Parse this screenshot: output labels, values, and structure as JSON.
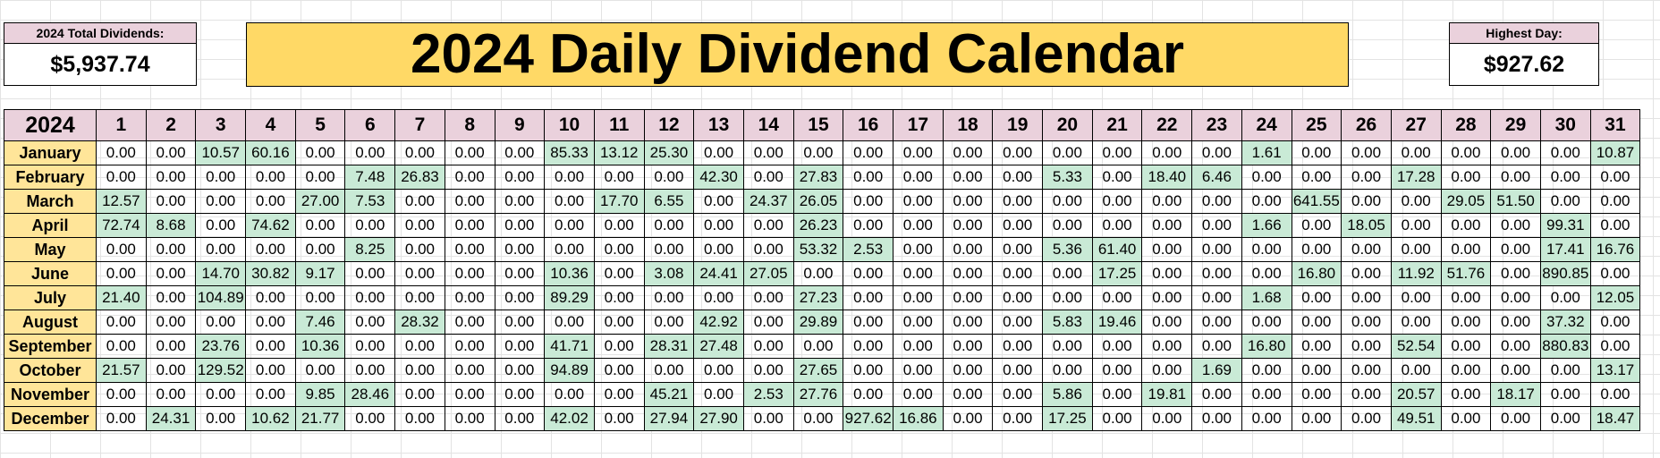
{
  "summary": {
    "total_label": "2024 Total Dividends:",
    "total_value": "$5,937.74",
    "title": "2024 Daily Dividend Calendar",
    "highest_label": "Highest Day:",
    "highest_value": "$927.62"
  },
  "calendar": {
    "year_label": "2024",
    "days": [
      "1",
      "2",
      "3",
      "4",
      "5",
      "6",
      "7",
      "8",
      "9",
      "10",
      "11",
      "12",
      "13",
      "14",
      "15",
      "16",
      "17",
      "18",
      "19",
      "20",
      "21",
      "22",
      "23",
      "24",
      "25",
      "26",
      "27",
      "28",
      "29",
      "30",
      "31"
    ],
    "months": [
      {
        "name": "January",
        "values": [
          "0.00",
          "0.00",
          "10.57",
          "60.16",
          "0.00",
          "0.00",
          "0.00",
          "0.00",
          "0.00",
          "85.33",
          "13.12",
          "25.30",
          "0.00",
          "0.00",
          "0.00",
          "0.00",
          "0.00",
          "0.00",
          "0.00",
          "0.00",
          "0.00",
          "0.00",
          "0.00",
          "1.61",
          "0.00",
          "0.00",
          "0.00",
          "0.00",
          "0.00",
          "0.00",
          "10.87"
        ]
      },
      {
        "name": "February",
        "values": [
          "0.00",
          "0.00",
          "0.00",
          "0.00",
          "0.00",
          "7.48",
          "26.83",
          "0.00",
          "0.00",
          "0.00",
          "0.00",
          "0.00",
          "42.30",
          "0.00",
          "27.83",
          "0.00",
          "0.00",
          "0.00",
          "0.00",
          "5.33",
          "0.00",
          "18.40",
          "6.46",
          "0.00",
          "0.00",
          "0.00",
          "17.28",
          "0.00",
          "0.00",
          "0.00",
          "0.00"
        ]
      },
      {
        "name": "March",
        "values": [
          "12.57",
          "0.00",
          "0.00",
          "0.00",
          "27.00",
          "7.53",
          "0.00",
          "0.00",
          "0.00",
          "0.00",
          "17.70",
          "6.55",
          "0.00",
          "24.37",
          "26.05",
          "0.00",
          "0.00",
          "0.00",
          "0.00",
          "0.00",
          "0.00",
          "0.00",
          "0.00",
          "0.00",
          "641.55",
          "0.00",
          "0.00",
          "29.05",
          "51.50",
          "0.00",
          "0.00"
        ]
      },
      {
        "name": "April",
        "values": [
          "72.74",
          "8.68",
          "0.00",
          "74.62",
          "0.00",
          "0.00",
          "0.00",
          "0.00",
          "0.00",
          "0.00",
          "0.00",
          "0.00",
          "0.00",
          "0.00",
          "26.23",
          "0.00",
          "0.00",
          "0.00",
          "0.00",
          "0.00",
          "0.00",
          "0.00",
          "0.00",
          "1.66",
          "0.00",
          "18.05",
          "0.00",
          "0.00",
          "0.00",
          "99.31",
          "0.00"
        ]
      },
      {
        "name": "May",
        "values": [
          "0.00",
          "0.00",
          "0.00",
          "0.00",
          "0.00",
          "8.25",
          "0.00",
          "0.00",
          "0.00",
          "0.00",
          "0.00",
          "0.00",
          "0.00",
          "0.00",
          "53.32",
          "2.53",
          "0.00",
          "0.00",
          "0.00",
          "5.36",
          "61.40",
          "0.00",
          "0.00",
          "0.00",
          "0.00",
          "0.00",
          "0.00",
          "0.00",
          "0.00",
          "17.41",
          "16.76"
        ]
      },
      {
        "name": "June",
        "values": [
          "0.00",
          "0.00",
          "14.70",
          "30.82",
          "9.17",
          "0.00",
          "0.00",
          "0.00",
          "0.00",
          "10.36",
          "0.00",
          "3.08",
          "24.41",
          "27.05",
          "0.00",
          "0.00",
          "0.00",
          "0.00",
          "0.00",
          "0.00",
          "17.25",
          "0.00",
          "0.00",
          "0.00",
          "16.80",
          "0.00",
          "11.92",
          "51.76",
          "0.00",
          "890.85",
          "0.00"
        ]
      },
      {
        "name": "July",
        "values": [
          "21.40",
          "0.00",
          "104.89",
          "0.00",
          "0.00",
          "0.00",
          "0.00",
          "0.00",
          "0.00",
          "89.29",
          "0.00",
          "0.00",
          "0.00",
          "0.00",
          "27.23",
          "0.00",
          "0.00",
          "0.00",
          "0.00",
          "0.00",
          "0.00",
          "0.00",
          "0.00",
          "1.68",
          "0.00",
          "0.00",
          "0.00",
          "0.00",
          "0.00",
          "0.00",
          "12.05"
        ]
      },
      {
        "name": "August",
        "values": [
          "0.00",
          "0.00",
          "0.00",
          "0.00",
          "7.46",
          "0.00",
          "28.32",
          "0.00",
          "0.00",
          "0.00",
          "0.00",
          "0.00",
          "42.92",
          "0.00",
          "29.89",
          "0.00",
          "0.00",
          "0.00",
          "0.00",
          "5.83",
          "19.46",
          "0.00",
          "0.00",
          "0.00",
          "0.00",
          "0.00",
          "0.00",
          "0.00",
          "0.00",
          "37.32",
          "0.00"
        ]
      },
      {
        "name": "September",
        "values": [
          "0.00",
          "0.00",
          "23.76",
          "0.00",
          "10.36",
          "0.00",
          "0.00",
          "0.00",
          "0.00",
          "41.71",
          "0.00",
          "28.31",
          "27.48",
          "0.00",
          "0.00",
          "0.00",
          "0.00",
          "0.00",
          "0.00",
          "0.00",
          "0.00",
          "0.00",
          "0.00",
          "16.80",
          "0.00",
          "0.00",
          "52.54",
          "0.00",
          "0.00",
          "880.83",
          "0.00"
        ]
      },
      {
        "name": "October",
        "values": [
          "21.57",
          "0.00",
          "129.52",
          "0.00",
          "0.00",
          "0.00",
          "0.00",
          "0.00",
          "0.00",
          "94.89",
          "0.00",
          "0.00",
          "0.00",
          "0.00",
          "27.65",
          "0.00",
          "0.00",
          "0.00",
          "0.00",
          "0.00",
          "0.00",
          "0.00",
          "1.69",
          "0.00",
          "0.00",
          "0.00",
          "0.00",
          "0.00",
          "0.00",
          "0.00",
          "13.17"
        ]
      },
      {
        "name": "November",
        "values": [
          "0.00",
          "0.00",
          "0.00",
          "0.00",
          "9.85",
          "28.46",
          "0.00",
          "0.00",
          "0.00",
          "0.00",
          "0.00",
          "45.21",
          "0.00",
          "2.53",
          "27.76",
          "0.00",
          "0.00",
          "0.00",
          "0.00",
          "5.86",
          "0.00",
          "19.81",
          "0.00",
          "0.00",
          "0.00",
          "0.00",
          "20.57",
          "0.00",
          "18.17",
          "0.00",
          "0.00"
        ]
      },
      {
        "name": "December",
        "values": [
          "0.00",
          "24.31",
          "0.00",
          "10.62",
          "21.77",
          "0.00",
          "0.00",
          "0.00",
          "0.00",
          "42.02",
          "0.00",
          "27.94",
          "27.90",
          "0.00",
          "0.00",
          "927.62",
          "16.86",
          "0.00",
          "0.00",
          "17.25",
          "0.00",
          "0.00",
          "0.00",
          "0.00",
          "0.00",
          "0.00",
          "49.51",
          "0.00",
          "0.00",
          "0.00",
          "18.47"
        ]
      }
    ]
  },
  "colors": {
    "title_bg": "#ffd966",
    "header_bg": "#ead1dc",
    "month_bg": "#ffe599",
    "positive_bg": "#c9ead6"
  }
}
